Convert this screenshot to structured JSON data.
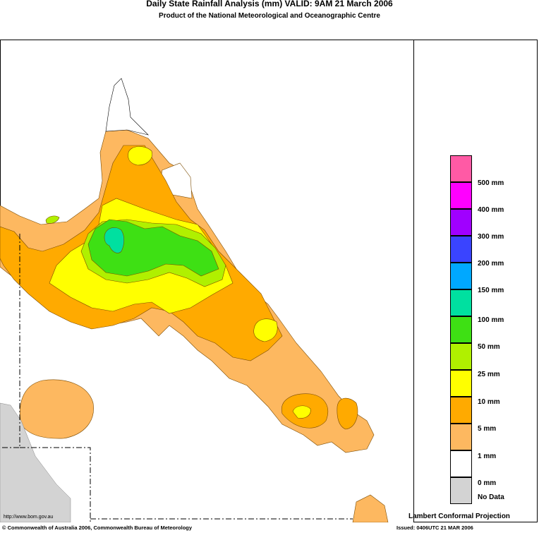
{
  "header": {
    "title": "Daily State Rainfall Analysis (mm)  VALID: 9AM 21 March 2006",
    "subtitle": "Product of the National Meteorological and Oceanographic Centre"
  },
  "legend": {
    "items": [
      {
        "label": "500 mm",
        "color": "#ff5aa5"
      },
      {
        "label": "400 mm",
        "color": "#ff00ff"
      },
      {
        "label": "300 mm",
        "color": "#a000ff"
      },
      {
        "label": "200 mm",
        "color": "#3a44ff"
      },
      {
        "label": "150 mm",
        "color": "#00a8ff"
      },
      {
        "label": "100 mm",
        "color": "#00e0a0"
      },
      {
        "label": "50 mm",
        "color": "#3ee014"
      },
      {
        "label": "25 mm",
        "color": "#b0f000"
      },
      {
        "label": "10 mm",
        "color": "#ffff00"
      },
      {
        "label": "5 mm",
        "color": "#ffaa00"
      },
      {
        "label": "1 mm",
        "color": "#fdb860"
      },
      {
        "label": "0 mm",
        "color": "#ffffff"
      },
      {
        "label": "No Data",
        "color": "#d3d3d3"
      }
    ]
  },
  "map": {
    "projection": "Lambert Conformal Projection",
    "colors": {
      "land": "#ffffff",
      "mm1": "#fdb860",
      "mm5": "#ffaa00",
      "mm10": "#ffff00",
      "mm25": "#b0f000",
      "mm50": "#3ee014",
      "mm100": "#00e0a0",
      "nodata": "#d3d3d3"
    }
  },
  "footer": {
    "url": "http://www.bom.gov.au",
    "copyright": "© Commonwealth of Australia 2006, Commonwealth Bureau of Meteorology",
    "issued": "Issued: 0406UTC 21 MAR 2006"
  }
}
